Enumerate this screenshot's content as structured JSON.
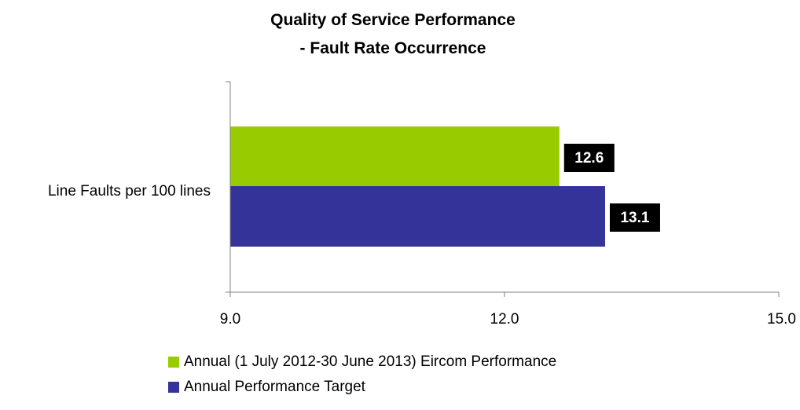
{
  "chart_data": {
    "type": "bar",
    "orientation": "horizontal",
    "title": [
      "Quality of Service Performance",
      "- Fault Rate Occurrence"
    ],
    "categories": [
      "Line Faults per 100 lines"
    ],
    "series": [
      {
        "name": "Annual (1 July 2012-30 June 2013) Eircom Performance",
        "values": [
          12.6
        ],
        "color": "#99cc00"
      },
      {
        "name": "Annual Performance Target",
        "values": [
          13.1
        ],
        "color": "#333399"
      }
    ],
    "data_labels": [
      "12.6",
      "13.1"
    ],
    "xlim": [
      9.0,
      15.0
    ],
    "x_ticks": [
      "9.0",
      "12.0",
      "15.0"
    ],
    "grid": false,
    "legend_position": "bottom-left"
  }
}
